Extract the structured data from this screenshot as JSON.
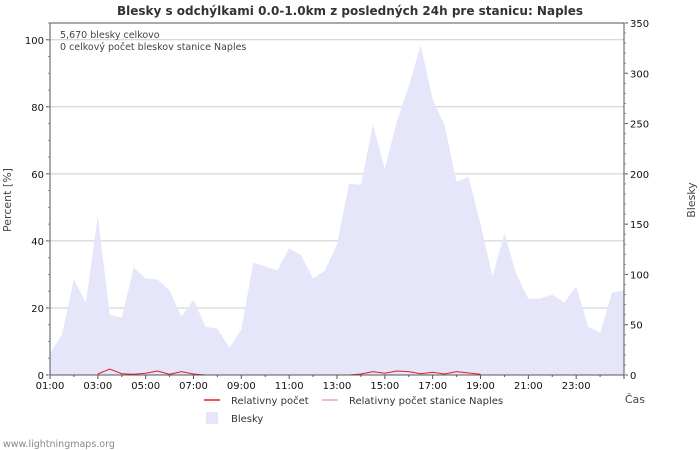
{
  "chart_data": {
    "type": "area",
    "title": "Blesky s odchýlkami 0.0-1.0km z posledných 24h pre stanicu: Naples",
    "ylabel_left": "Percent   [%]",
    "ylabel_right": "Blesky",
    "xlabel": "Čas",
    "ylim_left": [
      0,
      105
    ],
    "ylim_right": [
      0,
      350
    ],
    "yticks_left": [
      "0",
      "20",
      "40",
      "60",
      "80",
      "100"
    ],
    "yticks_right": [
      "0",
      "50",
      "100",
      "150",
      "200",
      "250",
      "300",
      "350"
    ],
    "x_ticks": [
      "01:00",
      "03:00",
      "05:00",
      "07:00",
      "09:00",
      "11:00",
      "13:00",
      "15:00",
      "17:00",
      "19:00",
      "21:00",
      "23:00"
    ],
    "grid": true,
    "annotations": [
      "5,670 blesky celkovo",
      "0 celkový počet bleskov stanice Naples"
    ],
    "series": [
      {
        "name": "Blesky",
        "axis": "right",
        "color": "#e6e6fa",
        "x": [
          0.0,
          0.5,
          1.0,
          1.5,
          2.0,
          2.5,
          3.0,
          3.5,
          4.0,
          4.5,
          5.0,
          5.5,
          6.0,
          6.5,
          7.0,
          7.5,
          8.0,
          8.5,
          9.0,
          9.5,
          10.0,
          10.5,
          11.0,
          11.5,
          12.0,
          12.5,
          13.0,
          13.5,
          14.0,
          14.5,
          15.0,
          15.5,
          16.0,
          16.5,
          17.0,
          17.5,
          18.0,
          18.5,
          19.0,
          19.5,
          20.0,
          20.5,
          21.0,
          21.5,
          22.0,
          22.5,
          23.0,
          23.5,
          24.0
        ],
        "values": [
          22,
          40,
          95,
          72,
          158,
          60,
          57,
          107,
          96,
          95,
          84,
          58,
          75,
          48,
          46,
          27,
          45,
          112,
          108,
          104,
          126,
          119,
          96,
          104,
          130,
          190,
          189,
          249,
          205,
          252,
          287,
          328,
          274,
          248,
          192,
          197,
          150,
          98,
          141,
          100,
          76,
          76,
          80,
          72,
          88,
          48,
          42,
          82,
          84
        ]
      },
      {
        "name": "Relativny počet",
        "axis": "left",
        "color": "#dd2222",
        "x": [
          2.0,
          2.5,
          3.0,
          3.5,
          4.0,
          4.5,
          5.0,
          5.5,
          6.0,
          6.5,
          7.0,
          7.5,
          8.0,
          8.5,
          9.0,
          9.5,
          10.0,
          10.5,
          11.0,
          11.5,
          12.0,
          12.5,
          13.0,
          13.5,
          14.0,
          14.5,
          15.0,
          15.5,
          16.0,
          16.5,
          17.0,
          17.5,
          18.0
        ],
        "values": [
          0.3,
          1.8,
          0.4,
          0.2,
          0.5,
          1.2,
          0.2,
          1.0,
          0.3,
          0,
          0,
          0,
          0,
          0,
          0,
          0,
          0,
          0,
          0,
          0,
          0,
          0,
          0.3,
          1.0,
          0.5,
          1.2,
          1.0,
          0.4,
          0.8,
          0.3,
          1.0,
          0.6,
          0.2
        ]
      },
      {
        "name": "Relativny počet stanice Naples",
        "axis": "left",
        "color": "#f4a0a0",
        "x": [],
        "values": []
      }
    ]
  },
  "legend": [
    {
      "label": "Relativny počet",
      "color": "#dd2222",
      "kind": "line"
    },
    {
      "label": "Relativny počet stanice Naples",
      "color": "#f4a0a0",
      "kind": "line"
    },
    {
      "label": "Blesky",
      "color": "#e6e6fa",
      "kind": "area"
    }
  ],
  "footer": "www.lightningmaps.org"
}
